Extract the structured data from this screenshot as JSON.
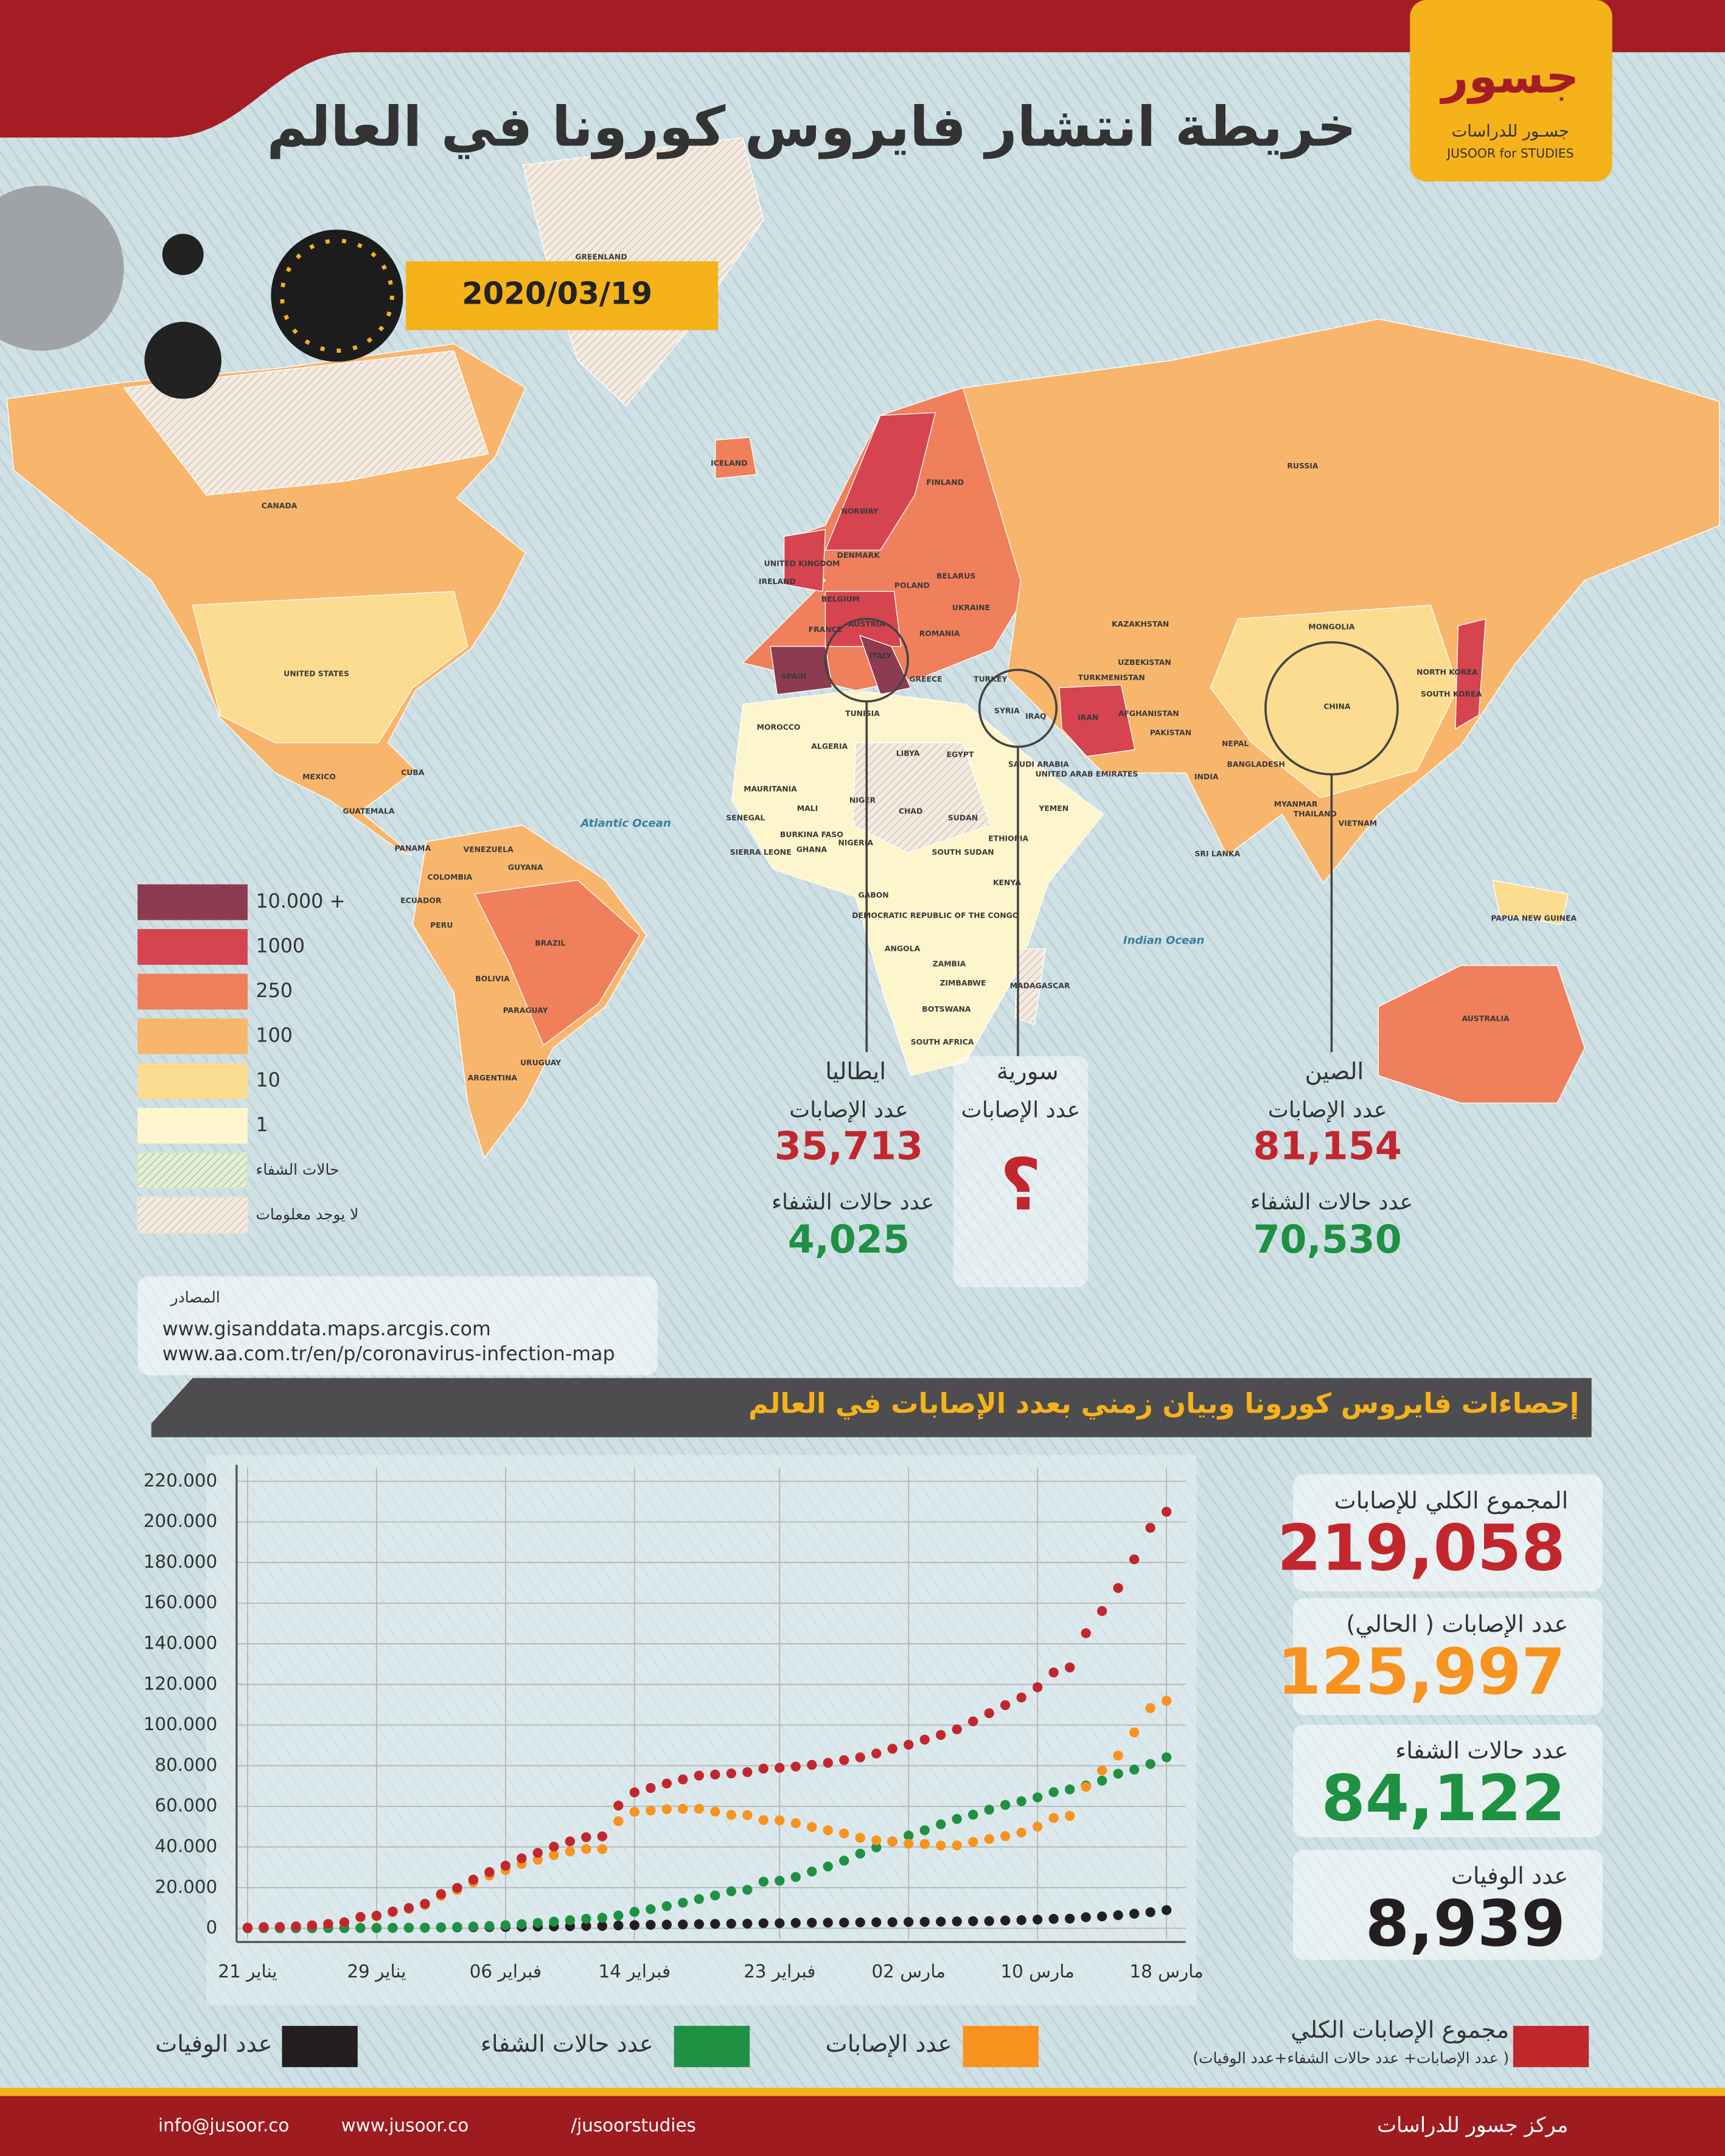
{
  "header": {
    "title": "خريطة انتشار فايروس كورونا في العالم",
    "logo_mark": "جسور",
    "logo_name": "جسـور للدراسات",
    "logo_en": "JUSOOR for STUDIES",
    "date": "2020/03/19"
  },
  "map": {
    "labels": [
      "CANADA",
      "UNITED STATES",
      "MEXICO",
      "CUBA",
      "GUATEMALA",
      "PANAMA",
      "VENEZUELA",
      "GUYANA",
      "COLOMBIA",
      "ECUADOR",
      "PERU",
      "BRAZIL",
      "BOLIVIA",
      "PARAGUAY",
      "URUGUAY",
      "ARGENTINA",
      "GREENLAND",
      "ICELAND",
      "NORWAY",
      "FINLAND",
      "RUSSIA",
      "UNITED KINGDOM",
      "IRELAND",
      "DENMARK",
      "BELARUS",
      "POLAND",
      "BELGIUM",
      "UKRAINE",
      "AUSTRIA",
      "FRANCE",
      "ROMANIA",
      "ITALY",
      "GREECE",
      "TURKEY",
      "SPAIN",
      "KAZAKHSTAN",
      "MONGOLIA",
      "UZBEKISTAN",
      "TURKMENISTAN",
      "NORTH KOREA",
      "SOUTH KOREA",
      "SYRIA",
      "IRAQ",
      "IRAN",
      "AFGHANISTAN",
      "CHINA",
      "PAKISTAN",
      "NEPAL",
      "BANGLADESH",
      "INDIA",
      "MYANMAR",
      "VIETNAM",
      "THAILAND",
      "SRI LANKA",
      "TUNISIA",
      "MOROCCO",
      "ALGERIA",
      "LIBYA",
      "EGYPT",
      "SAUDI ARABIA",
      "UNITED ARAB EMIRATES",
      "YEMEN",
      "MAURITANIA",
      "MALI",
      "NIGER",
      "CHAD",
      "SUDAN",
      "SENEGAL",
      "BURKINA FASO",
      "NIGERIA",
      "SIERRA LEONE",
      "GHANA",
      "ETHIOPIA",
      "SOUTH SUDAN",
      "KENYA",
      "GABON",
      "DEMOCRATIC REPUBLIC OF THE CONGO",
      "ANGOLA",
      "ZAMBIA",
      "ZIMBABWE",
      "MADAGASCAR",
      "BOTSWANA",
      "SOUTH AFRICA",
      "PAPUA NEW GUINEA",
      "AUSTRALIA",
      "Atlantic Ocean",
      "Indian Ocean"
    ],
    "legend": [
      {
        "label": "10.000 +",
        "color": "#8c3b50"
      },
      {
        "label": "1000",
        "color": "#d5444f"
      },
      {
        "label": "250",
        "color": "#f07f5c"
      },
      {
        "label": "100",
        "color": "#f8b56c"
      },
      {
        "label": "10",
        "color": "#fbdc90"
      },
      {
        "label": "1",
        "color": "#fdf5cb"
      },
      {
        "label": "حالات الشفاء",
        "color": "#d4e4c6",
        "hatched": true
      },
      {
        "label": "لا يوجد معلومات",
        "color": "#ece0d4",
        "hatched": true
      }
    ],
    "callouts": [
      {
        "country": "ايطاليا",
        "cases_label": "عدد الإصابات",
        "cases": "35,713",
        "recovered_label": "عدد حالات الشفاء",
        "recovered": "4,025"
      },
      {
        "country": "سورية",
        "cases_label": "عدد الإصابات",
        "cases": "؟"
      },
      {
        "country": "الصين",
        "cases_label": "عدد الإصابات",
        "cases": "81,154",
        "recovered_label": "عدد حالات الشفاء",
        "recovered": "70,530"
      }
    ]
  },
  "sources": {
    "title": "المصادر",
    "links": [
      "www.gisanddata.maps.arcgis.com",
      "www.aa.com.tr/en/p/coronavirus-infection-map"
    ]
  },
  "section_title": "إحصاءات فايروس كورونا وبيان زمني بعدد الإصابات في العالم",
  "chart_data": {
    "type": "line",
    "legend_note": "( عدد الإصابات+ عدد حالات الشفاء+عدد الوفيات)",
    "categories": [
      "21 يناير",
      null,
      null,
      null,
      null,
      null,
      null,
      null,
      "29 يناير",
      null,
      null,
      null,
      null,
      null,
      null,
      null,
      "06 فبراير",
      null,
      null,
      null,
      null,
      null,
      null,
      null,
      "14 فبراير",
      null,
      null,
      null,
      null,
      null,
      null,
      null,
      null,
      "23 فبراير",
      null,
      null,
      null,
      null,
      null,
      null,
      null,
      "02 مارس",
      null,
      null,
      null,
      null,
      null,
      null,
      null,
      "10 مارس",
      null,
      null,
      null,
      null,
      null,
      null,
      null,
      "18 مارس"
    ],
    "ylim": [
      0,
      220000
    ],
    "yticks": [
      0,
      {
        "value": 20000,
        "label": "20.000"
      },
      {
        "value": 40000,
        "label": "40.000"
      },
      {
        "value": 60000,
        "label": "60.000"
      },
      {
        "value": 80000,
        "label": "80.000"
      },
      {
        "value": 100000,
        "label": "100.000"
      },
      {
        "value": 120000,
        "label": "120.000"
      },
      {
        "value": 140000,
        "label": "140.000"
      },
      {
        "value": 160000,
        "label": "160.000"
      },
      {
        "value": 180000,
        "label": "180.000"
      },
      {
        "value": 200000,
        "label": "200.000"
      },
      {
        "value": 220000,
        "label": "220.000"
      }
    ],
    "grid": true,
    "series": [
      {
        "name": "مجموع الإصابات الكلي",
        "color": "#c1272d",
        "values": [
          300,
          560,
          650,
          940,
          1430,
          2120,
          2930,
          5580,
          6170,
          8230,
          9930,
          12040,
          16790,
          19880,
          23890,
          27640,
          30790,
          34390,
          37120,
          40150,
          42760,
          44800,
          45220,
          60370,
          66890,
          69030,
          71220,
          73260,
          75140,
          75640,
          76200,
          76820,
          78570,
          78960,
          79560,
          80410,
          81390,
          82750,
          84110,
          86010,
          88370,
          90310,
          92840,
          95120,
          97890,
          101800,
          105850,
          109820,
          113590,
          118620,
          125880,
          128350,
          145210,
          156100,
          167450,
          181570,
          197100,
          205000
        ]
      },
      {
        "name": "عدد الإصابات",
        "color": "#f7931e",
        "values": [
          290,
          520,
          600,
          880,
          1350,
          2010,
          2790,
          5340,
          5910,
          7920,
          9500,
          11500,
          15960,
          18830,
          22550,
          25950,
          28670,
          31660,
          33700,
          36000,
          37800,
          39000,
          38950,
          52700,
          57310,
          57970,
          58590,
          58810,
          58780,
          57400,
          55780,
          55680,
          53230,
          53100,
          51700,
          49800,
          48240,
          46660,
          44530,
          43290,
          42660,
          41620,
          41450,
          40700,
          40750,
          42480,
          43930,
          45320,
          47110,
          49950,
          54260,
          55310,
          69560,
          77660,
          84980,
          96360,
          108360,
          111940
        ]
      },
      {
        "name": "عدد حالات الشفاء",
        "color": "#1e9142",
        "values": [
          0,
          28,
          30,
          36,
          39,
          52,
          61,
          107,
          126,
          143,
          222,
          284,
          472,
          623,
          852,
          1124,
          1487,
          2011,
          2616,
          3244,
          3946,
          4683,
          5150,
          6295,
          8058,
          9395,
          10865,
          12583,
          14352,
          16121,
          18177,
          18890,
          22886,
          23394,
          25227,
          27905,
          30384,
          33277,
          36711,
          39782,
          42716,
          45602,
          48228,
          51170,
          53796,
          55865,
          58359,
          60694,
          62494,
          64404,
          67003,
          68324,
          70251,
          72624,
          76034,
          78088,
          80840,
          84120
        ]
      },
      {
        "name": "عدد الوفيات",
        "color": "#231f20",
        "values": [
          6,
          17,
          18,
          26,
          42,
          56,
          82,
          131,
          133,
          171,
          213,
          259,
          362,
          426,
          492,
          564,
          634,
          719,
          806,
          906,
          1013,
          1113,
          1118,
          1371,
          1523,
          1666,
          1770,
          1868,
          2007,
          2122,
          2247,
          2251,
          2458,
          2469,
          2629,
          2708,
          2770,
          2814,
          2872,
          2941,
          2996,
          3085,
          3160,
          3254,
          3348,
          3460,
          3558,
          3802,
          3988,
          4262,
          4615,
          4720,
          5404,
          5819,
          6440,
          7126,
          7905,
          8940
        ]
      }
    ]
  },
  "stats": [
    {
      "label": "المجموع الكلي للإصابات",
      "value": "219,058",
      "color": "#c1272d"
    },
    {
      "label": "عدد الإصابات ( الحالي)",
      "value": "125,997",
      "color": "#f7931e"
    },
    {
      "label": "عدد حالات الشفاء",
      "value": "84,122",
      "color": "#1e9142"
    },
    {
      "label": "عدد الوفيات",
      "value": "8,939",
      "color": "#231f20"
    }
  ],
  "footer": {
    "email": "info@jusoor.co",
    "site": "www.jusoor.co",
    "social": "/jusoorstudies",
    "org": "مركز جسور للدراسات"
  }
}
